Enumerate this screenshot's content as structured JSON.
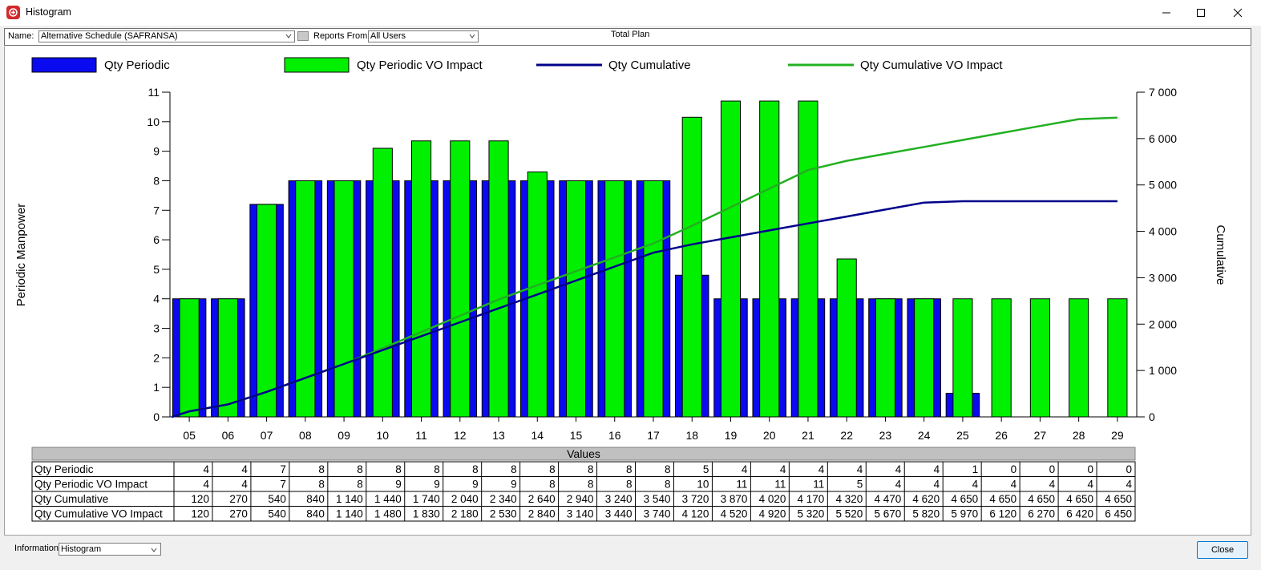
{
  "window": {
    "title": "Histogram"
  },
  "toolbar": {
    "name_label": "Name:",
    "name_value": "Alternative Schedule (SAFRANSA)",
    "reports_label": "Reports From:",
    "reports_value": "All Users",
    "plan_label": "Total Plan"
  },
  "bottom": {
    "information_label": "Information:",
    "information_value": "Histogram",
    "close_label": "Close"
  },
  "colors": {
    "qty_periodic": "#0a0af0",
    "qty_periodic_vo": "#00f000",
    "qty_cumulative": "#00008b",
    "qty_cumulative_vo": "#22b022"
  },
  "chart_data": {
    "type": "bar",
    "ylabel": "Periodic Manpower",
    "y2label": "Cumulative",
    "ylim": [
      0,
      11
    ],
    "y2lim": [
      0,
      7000
    ],
    "yticks": [
      "0",
      "1",
      "2",
      "3",
      "4",
      "5",
      "6",
      "7",
      "8",
      "9",
      "10",
      "11"
    ],
    "y2ticks": [
      "0",
      "1 000",
      "2 000",
      "3 000",
      "4 000",
      "5 000",
      "6 000",
      "7 000"
    ],
    "legend_position": "top",
    "categories": [
      "05",
      "06",
      "07",
      "08",
      "09",
      "10",
      "11",
      "12",
      "13",
      "14",
      "15",
      "16",
      "17",
      "18",
      "19",
      "20",
      "21",
      "22",
      "23",
      "24",
      "25",
      "26",
      "27",
      "28",
      "29"
    ],
    "series": [
      {
        "name": "Qty Periodic",
        "kind": "bar",
        "axis": "left",
        "values": [
          4,
          4,
          7.2,
          8,
          8,
          8,
          8,
          8,
          8,
          8,
          8,
          8,
          8,
          4.8,
          4,
          4,
          4,
          4,
          4,
          4,
          0.8,
          0,
          0,
          0,
          0
        ]
      },
      {
        "name": "Qty Periodic VO Impact",
        "kind": "bar",
        "axis": "left",
        "values": [
          4,
          4,
          7.2,
          8,
          8,
          9.1,
          9.35,
          9.35,
          9.35,
          8.3,
          8,
          8,
          8,
          10.15,
          10.7,
          10.7,
          10.7,
          5.35,
          4,
          4,
          4,
          4,
          4,
          4,
          4
        ]
      },
      {
        "name": "Qty Cumulative",
        "kind": "line",
        "axis": "right",
        "values": [
          120,
          270,
          540,
          840,
          1140,
          1440,
          1740,
          2040,
          2340,
          2640,
          2940,
          3240,
          3540,
          3720,
          3870,
          4020,
          4170,
          4320,
          4470,
          4620,
          4650,
          4650,
          4650,
          4650,
          4650
        ]
      },
      {
        "name": "Qty Cumulative VO Impact",
        "kind": "line",
        "axis": "right",
        "values": [
          120,
          270,
          540,
          840,
          1140,
          1480,
          1830,
          2180,
          2530,
          2840,
          3140,
          3440,
          3740,
          4120,
          4520,
          4920,
          5320,
          5520,
          5670,
          5820,
          5970,
          6120,
          6270,
          6420,
          6450
        ]
      }
    ],
    "table": {
      "header": "Values",
      "rows": [
        {
          "label": "Qty Periodic",
          "cells": [
            "4",
            "4",
            "7",
            "8",
            "8",
            "8",
            "8",
            "8",
            "8",
            "8",
            "8",
            "8",
            "8",
            "5",
            "4",
            "4",
            "4",
            "4",
            "4",
            "4",
            "1",
            "0",
            "0",
            "0",
            "0"
          ]
        },
        {
          "label": "Qty Periodic VO Impact",
          "cells": [
            "4",
            "4",
            "7",
            "8",
            "8",
            "9",
            "9",
            "9",
            "9",
            "8",
            "8",
            "8",
            "8",
            "10",
            "11",
            "11",
            "11",
            "5",
            "4",
            "4",
            "4",
            "4",
            "4",
            "4",
            "4"
          ]
        },
        {
          "label": "Qty Cumulative",
          "cells": [
            "120",
            "270",
            "540",
            "840",
            "1 140",
            "1 440",
            "1 740",
            "2 040",
            "2 340",
            "2 640",
            "2 940",
            "3 240",
            "3 540",
            "3 720",
            "3 870",
            "4 020",
            "4 170",
            "4 320",
            "4 470",
            "4 620",
            "4 650",
            "4 650",
            "4 650",
            "4 650",
            "4 650"
          ]
        },
        {
          "label": "Qty Cumulative VO Impact",
          "cells": [
            "120",
            "270",
            "540",
            "840",
            "1 140",
            "1 480",
            "1 830",
            "2 180",
            "2 530",
            "2 840",
            "3 140",
            "3 440",
            "3 740",
            "4 120",
            "4 520",
            "4 920",
            "5 320",
            "5 520",
            "5 670",
            "5 820",
            "5 970",
            "6 120",
            "6 270",
            "6 420",
            "6 450"
          ]
        }
      ]
    }
  }
}
